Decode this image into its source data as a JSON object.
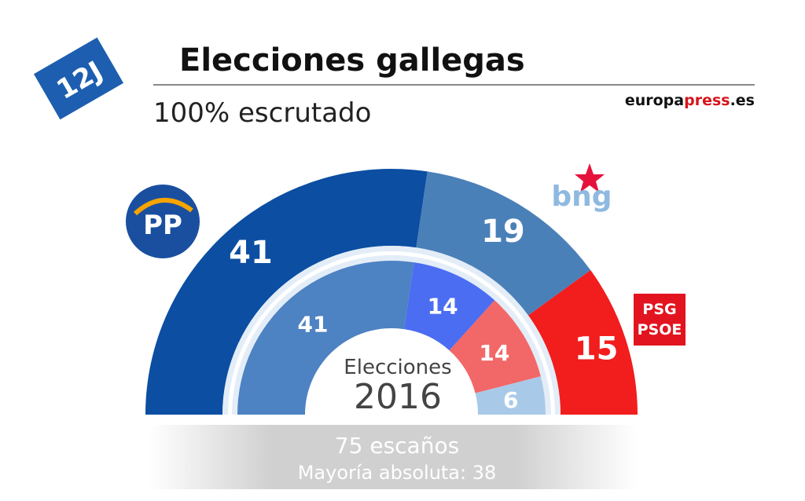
{
  "header": {
    "ballot": "12J",
    "title": "Elecciones gallegas",
    "subtitle": "100% escrutado",
    "source": [
      "europa",
      "press",
      ".es"
    ]
  },
  "logos": {
    "pp": "PP",
    "bng": "bng",
    "psoe": [
      "PSG",
      "PSOE"
    ]
  },
  "chart_data": {
    "type": "semicircle",
    "series": [
      {
        "values": [
          41,
          19,
          15
        ],
        "colors": [
          "#0b4ea2",
          "#4a80b8",
          "#f21d1d"
        ]
      },
      {
        "label": "Elecciones",
        "name": "2016",
        "values": [
          41,
          14,
          14,
          6
        ],
        "colors": [
          "#4d82c3",
          "#4b6df2",
          "#f26767",
          "#a9c9e8"
        ]
      }
    ],
    "seats": "75 escaños",
    "majority": "Mayoría absoluta: 38"
  }
}
